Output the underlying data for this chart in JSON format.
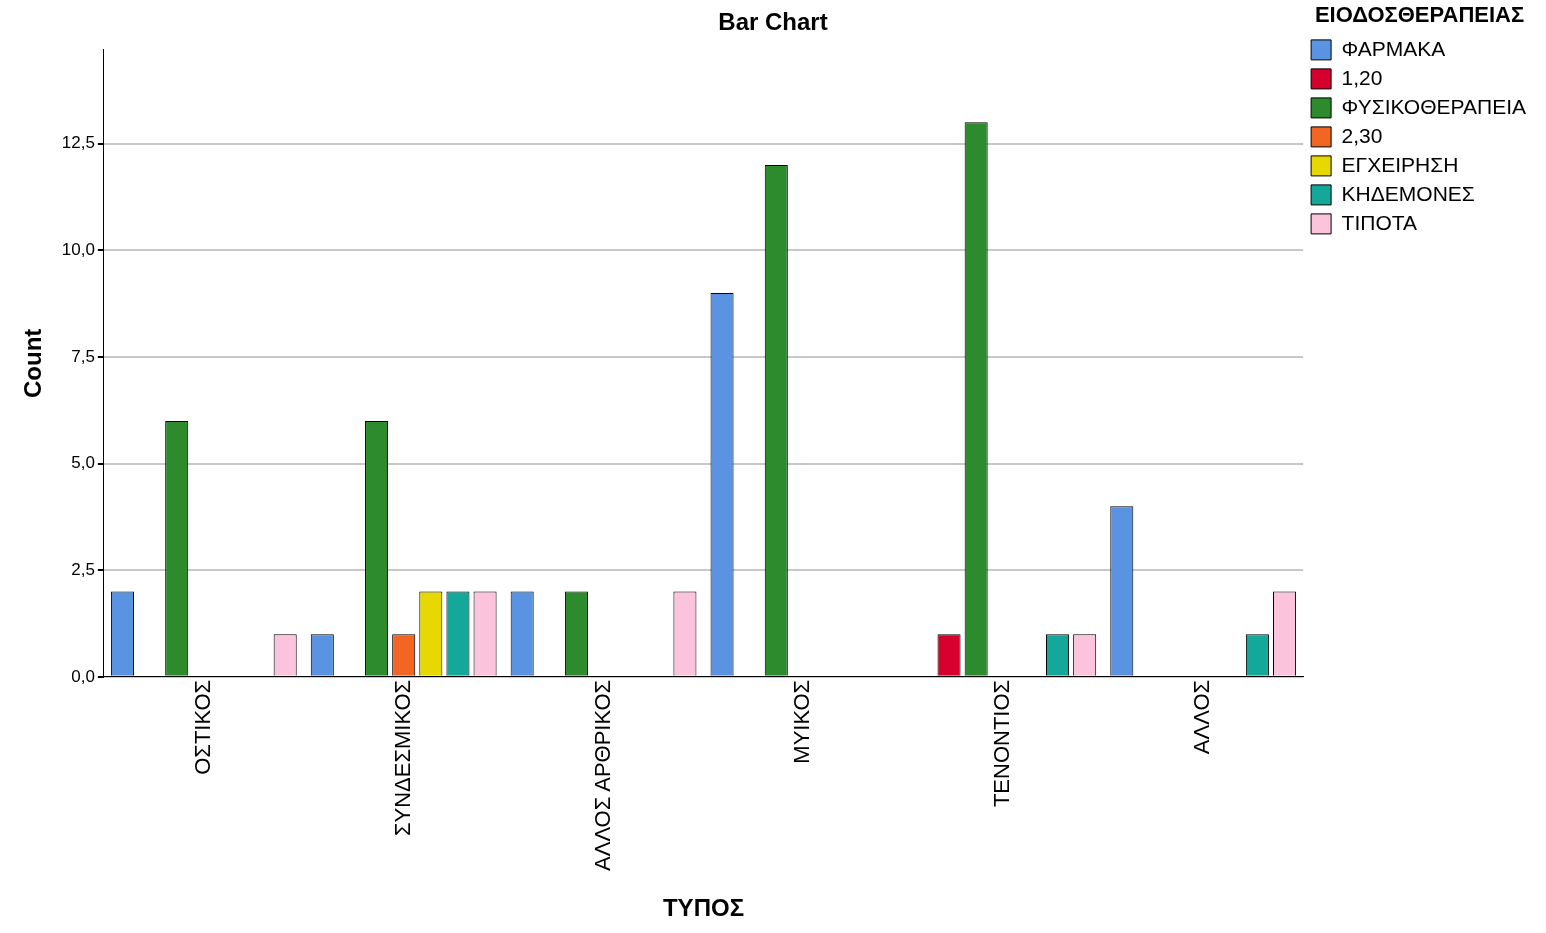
{
  "chart_data": {
    "type": "bar",
    "title": "Bar Chart",
    "xlabel": "ΤΥΠΟΣ",
    "ylabel": "Count",
    "legend_title": "ΕΙΟΔΟΣΘΕΡΑΠΕΙΑΣ",
    "categories": [
      "ΟΣΤΙΚΟΣ",
      "ΣΥΝΔΕΣΜΙΚΟΣ",
      "ΑΛΛΟΣ ΑΡΘΡΙΚΟΣ",
      "ΜΥΙΚΟΣ",
      "ΤΕΝΟΝΤΙΟΣ",
      "ΑΛΛΟΣ"
    ],
    "series": [
      {
        "name": "ΦΑΡΜΑΚΑ",
        "color": "#5b93e3",
        "values": [
          2,
          1,
          2,
          9,
          null,
          4
        ]
      },
      {
        "name": "1,20",
        "color": "#d6002e",
        "values": [
          null,
          null,
          null,
          null,
          1,
          null
        ]
      },
      {
        "name": "ΦΥΣΙΚΟΘΕΡΑΠΕΙΑ",
        "color": "#2d8a2d",
        "values": [
          6,
          6,
          2,
          12,
          13,
          null
        ]
      },
      {
        "name": "2,30",
        "color": "#f26522",
        "values": [
          null,
          1,
          null,
          null,
          null,
          null
        ]
      },
      {
        "name": "ΕΓΧΕΙΡΗΣΗ",
        "color": "#e6d800",
        "values": [
          null,
          2,
          null,
          null,
          null,
          null
        ]
      },
      {
        "name": "ΚΗΔΕΜΟΝΕΣ",
        "color": "#14a89a",
        "values": [
          null,
          2,
          null,
          null,
          1,
          1
        ]
      },
      {
        "name": "ΤΙΠΟΤΑ",
        "color": "#fbc3dc",
        "values": [
          1,
          2,
          2,
          null,
          1,
          2
        ]
      }
    ],
    "ylim": [
      0,
      14.7
    ],
    "yticks": [
      {
        "value": 0,
        "label": "0,0"
      },
      {
        "value": 2.5,
        "label": "2,5"
      },
      {
        "value": 5,
        "label": "5,0"
      },
      {
        "value": 7.5,
        "label": "7,5"
      },
      {
        "value": 10,
        "label": "10,0"
      },
      {
        "value": 12.5,
        "label": "12,5"
      }
    ],
    "grid": "y",
    "legend": "right"
  }
}
